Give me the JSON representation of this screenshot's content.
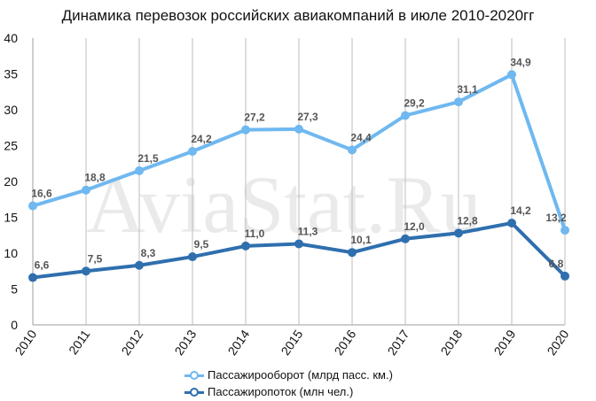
{
  "chart_data": {
    "type": "line",
    "title": "Динамика перевозок российских авиакомпаний в июле 2010-2020гг",
    "watermark": "AviaStat.Ru",
    "categories": [
      "2010",
      "2011",
      "2012",
      "2013",
      "2014",
      "2015",
      "2016",
      "2017",
      "2018",
      "2019",
      "2020"
    ],
    "ylim": [
      0,
      40
    ],
    "yticks": [
      0,
      5,
      10,
      15,
      20,
      25,
      30,
      35,
      40
    ],
    "grid": "vertical",
    "legend_position": "bottom",
    "series": [
      {
        "name": "Пассажирооборот (млрд пасс. км.)",
        "color": "#6fb8f0",
        "values": [
          16.6,
          18.8,
          21.5,
          24.2,
          27.2,
          27.3,
          24.4,
          29.2,
          31.1,
          34.9,
          13.2
        ],
        "labels": [
          "16,6",
          "18,8",
          "21,5",
          "24,2",
          "27,2",
          "27,3",
          "24,4",
          "29,2",
          "31,1",
          "34,9",
          "13,2"
        ]
      },
      {
        "name": "Пассажиропоток (млн чел.)",
        "color": "#2f6fae",
        "values": [
          6.6,
          7.5,
          8.3,
          9.5,
          11.0,
          11.3,
          10.1,
          12.0,
          12.8,
          14.2,
          6.8
        ],
        "labels": [
          "6,6",
          "7,5",
          "8,3",
          "9,5",
          "11,0",
          "11,3",
          "10,1",
          "12,0",
          "12,8",
          "14,2",
          "6,8"
        ]
      }
    ]
  }
}
